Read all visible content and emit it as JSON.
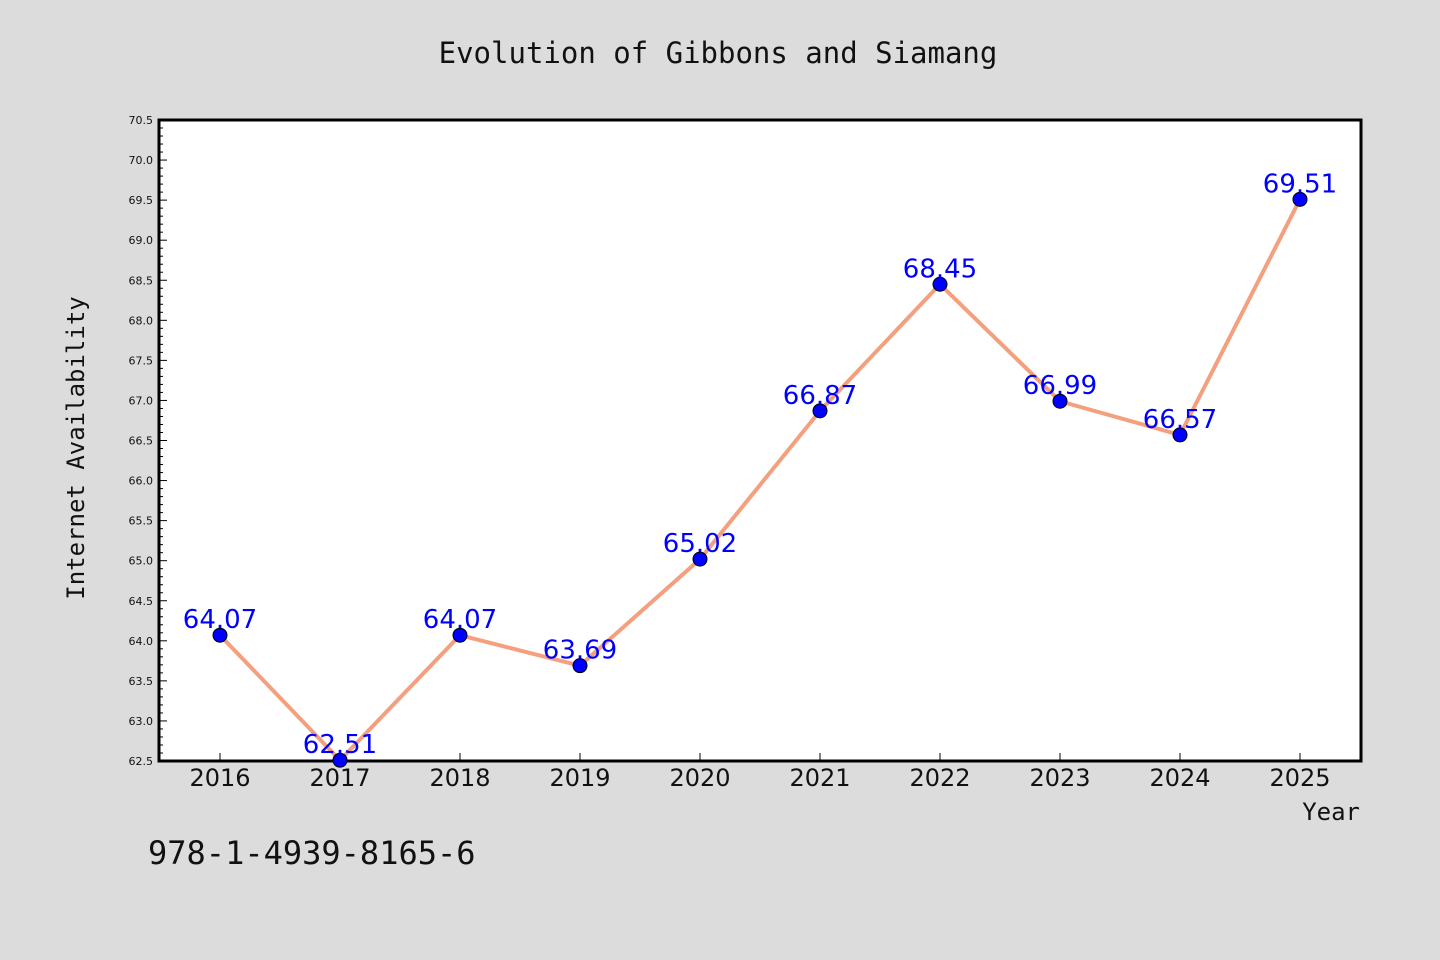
{
  "chart_data": {
    "type": "line",
    "title": "Evolution of Gibbons and Siamang",
    "xlabel": "Year",
    "ylabel": "Internet Availability",
    "categories": [
      "2016",
      "2017",
      "2018",
      "2019",
      "2020",
      "2021",
      "2022",
      "2023",
      "2024",
      "2025"
    ],
    "series": [
      {
        "values": [
          64.07,
          62.51,
          64.07,
          63.69,
          65.02,
          66.87,
          68.45,
          66.99,
          66.57,
          69.51
        ],
        "labels": [
          "64.07",
          "62.51",
          "64.07",
          "63.69",
          "65.02",
          "66.87",
          "68.45",
          "66.99",
          "66.57",
          "69.51"
        ],
        "line_color": "#f4a07e",
        "marker_color": "#0000ff"
      }
    ],
    "ylim": [
      62.5,
      70.5
    ],
    "yticks": [
      "62.5",
      "63.0",
      "63.5",
      "64.0",
      "64.5",
      "65.0",
      "65.5",
      "66.0",
      "66.5",
      "67.0",
      "67.5",
      "68.0",
      "68.5",
      "69.0",
      "69.5",
      "70.0",
      "70.5"
    ],
    "grid": false,
    "legend": "none",
    "background_color": "#dcdcdc",
    "plot_background": "#ffffff"
  },
  "annotation": "978-1-4939-8165-6"
}
